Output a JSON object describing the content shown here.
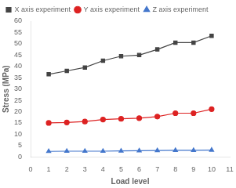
{
  "chart_data": {
    "type": "line",
    "xlabel": "Load level",
    "ylabel": "Stress (MPa)",
    "x": [
      1,
      2,
      3,
      4,
      5,
      6,
      7,
      8,
      9,
      10
    ],
    "series": [
      {
        "name": "X axis experiment",
        "color": "#444444",
        "marker": "square",
        "values": [
          36.5,
          38.0,
          39.5,
          42.5,
          44.5,
          45.0,
          47.5,
          50.5,
          50.5,
          53.5
        ]
      },
      {
        "name": "Y axis experiment",
        "color": "#dd2222",
        "marker": "circle",
        "values": [
          15.0,
          15.2,
          15.6,
          16.5,
          16.8,
          17.1,
          17.8,
          19.3,
          19.3,
          21.1
        ]
      },
      {
        "name": "Z axis experiment",
        "color": "#4477cc",
        "marker": "triangle",
        "values": [
          2.4,
          2.5,
          2.5,
          2.5,
          2.6,
          2.7,
          2.8,
          2.9,
          2.9,
          3.0
        ]
      }
    ],
    "xlim": [
      0,
      11
    ],
    "xticks": [
      0,
      1,
      2,
      3,
      4,
      5,
      6,
      7,
      8,
      9,
      10,
      11
    ],
    "ylim": [
      0,
      60
    ],
    "yticks": [
      0,
      5,
      10,
      15,
      20,
      25,
      30,
      35,
      40,
      45,
      50,
      55,
      60
    ],
    "grid": false,
    "legend": "upper left"
  }
}
